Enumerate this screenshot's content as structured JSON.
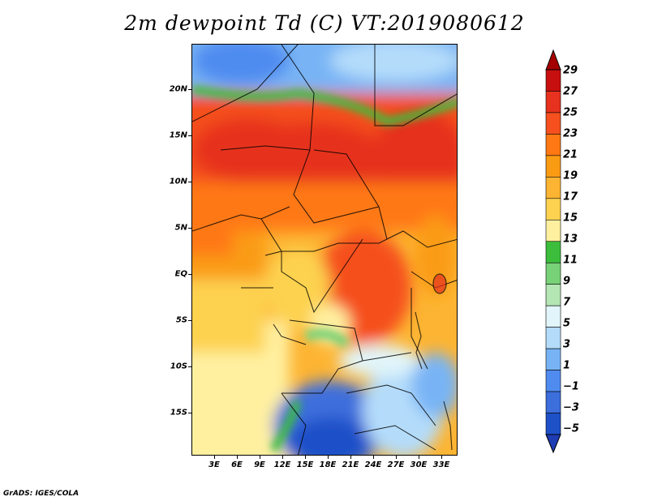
{
  "title": "2m dewpoint Td (C) VT:2019080612",
  "credit": "GrADS: IGES/COLA",
  "lat_labels": [
    "20N",
    "15N",
    "10N",
    "5N",
    "EQ",
    "5S",
    "10S",
    "15S"
  ],
  "lon_labels": [
    "3E",
    "6E",
    "9E",
    "12E",
    "15E",
    "18E",
    "21E",
    "24E",
    "27E",
    "30E",
    "33E"
  ],
  "colorbar": {
    "labels": [
      "29",
      "27",
      "25",
      "23",
      "21",
      "19",
      "17",
      "15",
      "13",
      "11",
      "9",
      "7",
      "5",
      "3",
      "1",
      "−1",
      "−3",
      "−5"
    ],
    "colors": [
      "#a50000",
      "#c80f0f",
      "#e6321e",
      "#f5501e",
      "#ff7814",
      "#fa9b14",
      "#fdb432",
      "#fdd250",
      "#fff0a0",
      "#3cbe3c",
      "#78d278",
      "#b4e6b4",
      "#e1f5fa",
      "#b4dcfa",
      "#78b4f5",
      "#508cf0",
      "#3c6edc",
      "#1e50c8",
      "#1e3cb4"
    ]
  },
  "chart_data": {
    "type": "heatmap",
    "title": "2m dewpoint Td (C) VT:2019080612",
    "xlabel": "",
    "ylabel": "",
    "lon_range": [
      "0E",
      "35E"
    ],
    "lat_range": [
      "20S",
      "25N"
    ]
  }
}
